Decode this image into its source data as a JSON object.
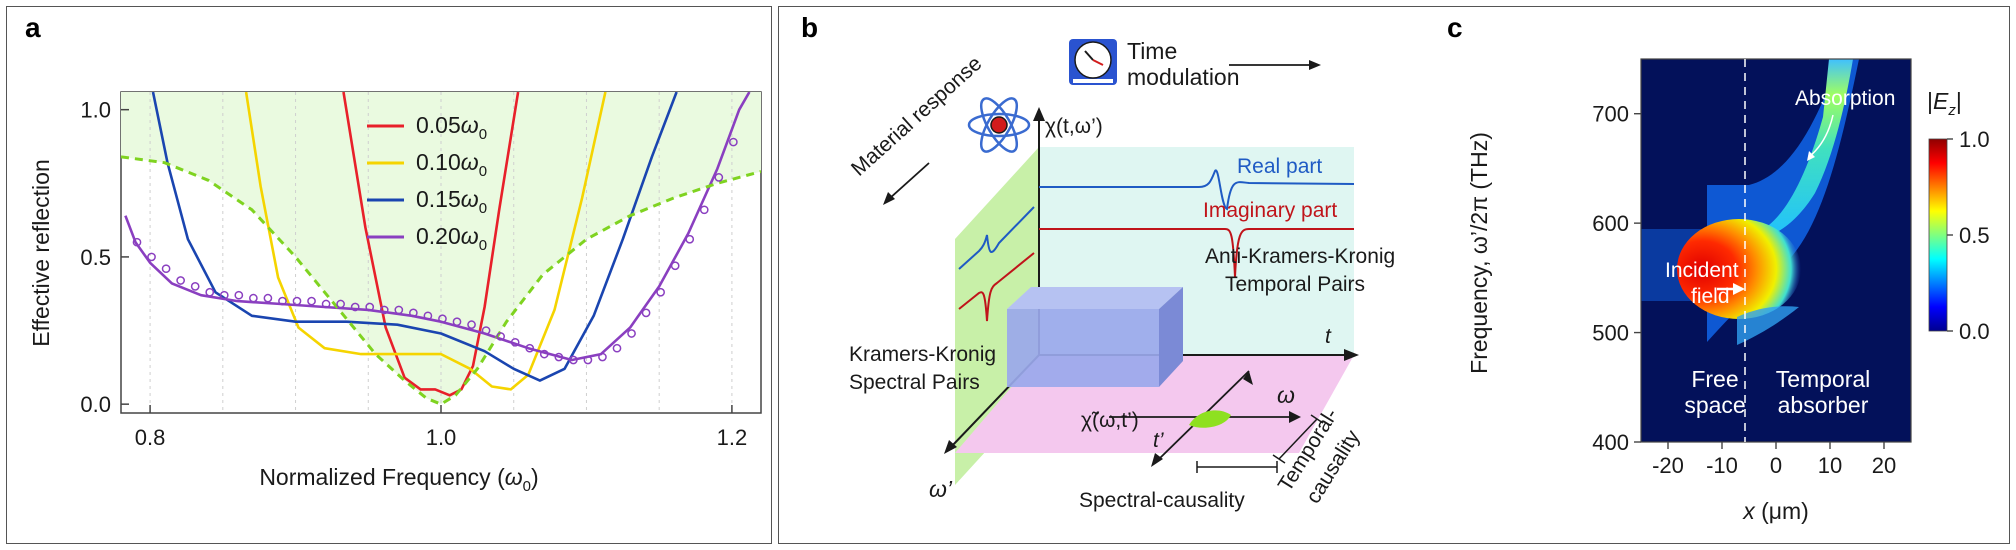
{
  "panel_a": {
    "letter": "a",
    "chart_data": {
      "type": "line",
      "xlabel": "Normalized Frequency (ω₀)",
      "ylabel": "Effective reflection",
      "xlim": [
        0.78,
        1.22
      ],
      "ylim": [
        -0.03,
        1.06
      ],
      "x_ticks": [
        "0.8",
        "1.0",
        "1.2"
      ],
      "y_ticks": [
        "0.0",
        "0.5",
        "1.0"
      ],
      "legend_position": "top-center",
      "series": [
        {
          "name": "0.05ω₀",
          "color": "#e8202a",
          "style": "solid",
          "x": [
            0.933,
            0.948,
            0.962,
            0.975,
            0.986,
            0.996,
            1.006,
            1.014,
            1.022,
            1.03,
            1.04,
            1.053
          ],
          "y": [
            1.06,
            0.6,
            0.26,
            0.09,
            0.05,
            0.05,
            0.03,
            0.05,
            0.13,
            0.33,
            0.66,
            1.06
          ]
        },
        {
          "name": "0.10ω₀",
          "color": "#f5d400",
          "style": "solid",
          "x": [
            0.866,
            0.876,
            0.888,
            0.902,
            0.92,
            0.945,
            0.975,
            1.0,
            1.02,
            1.035,
            1.048,
            1.06,
            1.078,
            1.097,
            1.113
          ],
          "y": [
            1.06,
            0.74,
            0.43,
            0.26,
            0.19,
            0.17,
            0.17,
            0.17,
            0.12,
            0.06,
            0.05,
            0.1,
            0.32,
            0.7,
            1.06
          ]
        },
        {
          "name": "0.15ω₀",
          "color": "#1a45b0",
          "style": "solid",
          "x": [
            0.802,
            0.812,
            0.826,
            0.845,
            0.87,
            0.9,
            0.935,
            0.97,
            1.0,
            1.03,
            1.05,
            1.068,
            1.085,
            1.105,
            1.125,
            1.145,
            1.162
          ],
          "y": [
            1.06,
            0.82,
            0.56,
            0.38,
            0.3,
            0.28,
            0.28,
            0.27,
            0.24,
            0.18,
            0.12,
            0.08,
            0.12,
            0.3,
            0.56,
            0.84,
            1.06
          ]
        },
        {
          "name": "0.20ω₀",
          "color": "#8a3fc0",
          "style": "solid",
          "x": [
            0.783,
            0.79,
            0.8,
            0.815,
            0.835,
            0.86,
            0.89,
            0.92,
            0.95,
            0.98,
            1.0,
            1.03,
            1.06,
            1.09,
            1.11,
            1.13,
            1.15,
            1.17,
            1.19,
            1.205,
            1.212
          ],
          "y": [
            0.64,
            0.55,
            0.48,
            0.41,
            0.37,
            0.35,
            0.34,
            0.33,
            0.32,
            0.3,
            0.28,
            0.24,
            0.19,
            0.15,
            0.17,
            0.26,
            0.4,
            0.58,
            0.8,
            1.0,
            1.06
          ]
        },
        {
          "name": "",
          "color": "#7fd320",
          "style": "dashed",
          "x": [
            0.78,
            0.81,
            0.84,
            0.87,
            0.9,
            0.93,
            0.955,
            0.975,
            0.99,
            1.0,
            1.01,
            1.025,
            1.045,
            1.07,
            1.1,
            1.13,
            1.16,
            1.19,
            1.22
          ],
          "y": [
            0.84,
            0.82,
            0.76,
            0.66,
            0.5,
            0.32,
            0.17,
            0.08,
            0.02,
            0.0,
            0.03,
            0.12,
            0.28,
            0.44,
            0.56,
            0.64,
            0.7,
            0.75,
            0.79
          ]
        }
      ],
      "markers": {
        "color": "#8a3fc0",
        "x": [
          0.791,
          0.801,
          0.811,
          0.821,
          0.831,
          0.841,
          0.851,
          0.861,
          0.871,
          0.881,
          0.891,
          0.901,
          0.911,
          0.921,
          0.931,
          0.941,
          0.951,
          0.961,
          0.971,
          0.981,
          0.991,
          1.001,
          1.011,
          1.021,
          1.031,
          1.041,
          1.051,
          1.061,
          1.071,
          1.081,
          1.091,
          1.101,
          1.111,
          1.121,
          1.131,
          1.141,
          1.151,
          1.161,
          1.171,
          1.181,
          1.191,
          1.201
        ],
        "y": [
          0.55,
          0.5,
          0.46,
          0.42,
          0.4,
          0.38,
          0.37,
          0.37,
          0.36,
          0.36,
          0.35,
          0.35,
          0.35,
          0.34,
          0.34,
          0.33,
          0.33,
          0.32,
          0.32,
          0.31,
          0.3,
          0.29,
          0.28,
          0.27,
          0.25,
          0.23,
          0.21,
          0.19,
          0.17,
          0.16,
          0.15,
          0.15,
          0.16,
          0.19,
          0.24,
          0.31,
          0.38,
          0.47,
          0.56,
          0.66,
          0.77,
          0.89
        ]
      }
    }
  },
  "panel_b": {
    "letter": "b",
    "labels": {
      "time_line1": "Time",
      "time_line2": "modulation",
      "material_response": "Material response",
      "chi_axis": "χ(t,ω’)",
      "real_part": "Real part",
      "imaginary_part": "Imaginary part",
      "akk_line1": "Anti-Kramers-Kronig",
      "akk_line2": "Temporal Pairs",
      "t_axis": "t",
      "kk_line1": "Kramers-Kronig",
      "kk_line2": "Spectral Pairs",
      "omega_axis": "ω",
      "chi_tilde": "χ̃(ω,t’)",
      "t_prime": "t’",
      "omega_prime": "ω’",
      "spectral_causality": "Spectral-causality",
      "temporal_line1": "Temporal-",
      "temporal_line2": "causality"
    },
    "colors": {
      "real": "#1f5bc4",
      "imaginary": "#c0141a",
      "left_plane": "#c8f0a8",
      "back_plane": "#dff6f2",
      "bottom_plane": "#f4c8ee",
      "box": "#8fa0e6",
      "blob": "#8ee020"
    },
    "icons": [
      "clock-icon",
      "atom-icon"
    ]
  },
  "panel_c": {
    "letter": "c",
    "chart_data": {
      "type": "heatmap",
      "xlabel": "x (μm)",
      "ylabel": "Frequency, ω’/2π (THz)",
      "xlim": [
        -25,
        25
      ],
      "ylim": [
        400,
        750
      ],
      "x_ticks": [
        "-20",
        "-10",
        "0",
        "10",
        "20"
      ],
      "y_ticks": [
        "400",
        "500",
        "600",
        "700"
      ],
      "colorbar_label": "|E_z|",
      "colorbar_ticks": [
        "0.0",
        "0.5",
        "1.0"
      ],
      "colorbar_range": [
        0.0,
        1.0
      ],
      "colormap": "jet",
      "annotations": {
        "absorption": "Absorption",
        "incident_line1": "Incident",
        "incident_line2": "field",
        "free_line1": "Free",
        "free_line2": "space",
        "temporal_line1": "Temporal",
        "temporal_line2": "absorber"
      },
      "incident_band_thz": [
        525,
        590
      ],
      "interface_x": 0
    }
  }
}
